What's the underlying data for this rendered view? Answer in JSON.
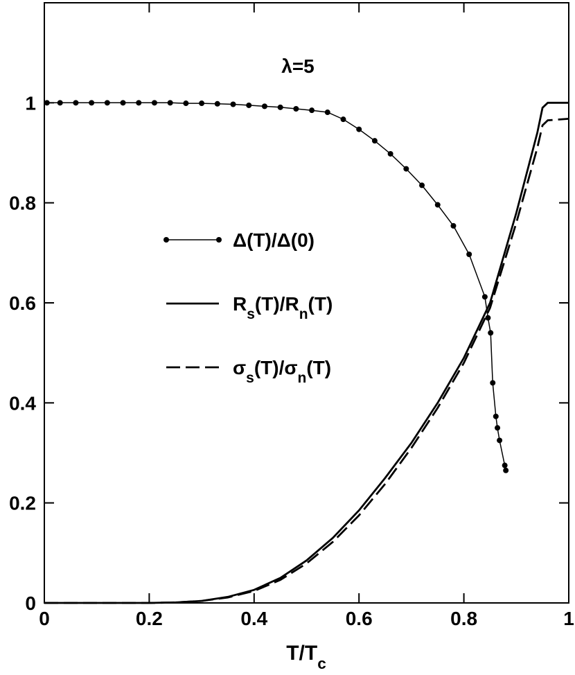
{
  "chart_data": {
    "type": "line",
    "annotation": "λ=5",
    "x_label": "T/Tc",
    "xlim": [
      0,
      1
    ],
    "xticks": [
      0,
      0.2,
      0.4,
      0.6,
      0.8,
      1
    ],
    "ylim": [
      0,
      1.2
    ],
    "yticks": [
      0,
      0.2,
      0.4,
      0.6,
      0.8,
      1
    ],
    "series": [
      {
        "name": "Δ(T)/Δ(0)",
        "color": "#000000",
        "style": "line-markers",
        "x": [
          0.005,
          0.03,
          0.06,
          0.09,
          0.12,
          0.15,
          0.18,
          0.21,
          0.24,
          0.27,
          0.3,
          0.33,
          0.36,
          0.39,
          0.42,
          0.45,
          0.48,
          0.51,
          0.54,
          0.57,
          0.6,
          0.63,
          0.66,
          0.69,
          0.72,
          0.75,
          0.78,
          0.81,
          0.84,
          0.846,
          0.851,
          0.855,
          0.861,
          0.864,
          0.868,
          0.878,
          0.88
        ],
        "values": [
          1,
          1,
          1,
          1,
          1,
          1,
          1,
          1,
          1,
          0.999,
          0.999,
          0.998,
          0.997,
          0.995,
          0.993,
          0.991,
          0.988,
          0.985,
          0.981,
          0.967,
          0.947,
          0.924,
          0.898,
          0.868,
          0.835,
          0.796,
          0.754,
          0.697,
          0.612,
          0.57,
          0.54,
          0.44,
          0.373,
          0.35,
          0.325,
          0.275,
          0.265
        ]
      },
      {
        "name": "Rs(T)/Rn(T)",
        "color": "#000000",
        "style": "solid",
        "x": [
          0,
          0.2,
          0.25,
          0.3,
          0.35,
          0.4,
          0.45,
          0.5,
          0.55,
          0.6,
          0.65,
          0.7,
          0.75,
          0.8,
          0.85,
          0.9,
          0.94,
          0.95,
          0.96,
          1.0
        ],
        "values": [
          0,
          0,
          0.001,
          0.004,
          0.012,
          0.026,
          0.05,
          0.085,
          0.13,
          0.185,
          0.25,
          0.32,
          0.4,
          0.49,
          0.6,
          0.78,
          0.94,
          0.99,
          1.0,
          1.0
        ]
      },
      {
        "name": "σs(T)/σn(T)",
        "color": "#000000",
        "style": "dashed",
        "x": [
          0,
          0.2,
          0.25,
          0.3,
          0.35,
          0.4,
          0.45,
          0.5,
          0.55,
          0.6,
          0.65,
          0.7,
          0.75,
          0.8,
          0.85,
          0.9,
          0.94,
          0.95,
          0.96,
          1.0
        ],
        "values": [
          0,
          0,
          0.001,
          0.004,
          0.011,
          0.024,
          0.046,
          0.079,
          0.122,
          0.175,
          0.238,
          0.31,
          0.39,
          0.48,
          0.59,
          0.76,
          0.91,
          0.955,
          0.965,
          0.968
        ]
      }
    ]
  }
}
